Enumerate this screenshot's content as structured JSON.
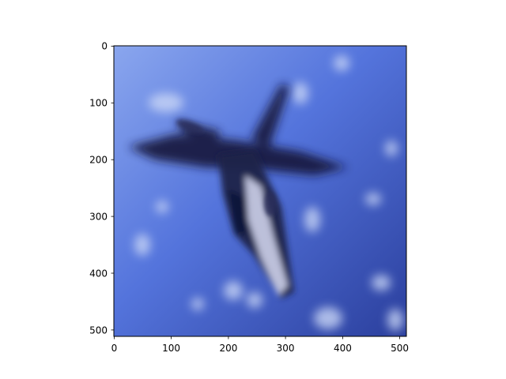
{
  "figure": {
    "x_ticks": [
      "0",
      "100",
      "200",
      "300",
      "400",
      "500"
    ],
    "y_ticks": [
      "0",
      "100",
      "200",
      "300",
      "400",
      "500"
    ],
    "image_colors": {
      "sky_light": "#7e9ae6",
      "sky_mid": "#4b69d4",
      "sky_dark": "#2a3e9a",
      "aircraft_dark": "#14183a",
      "aircraft_light": "#d8dcf2"
    },
    "subject_icon": "fighter-jet-icon"
  }
}
